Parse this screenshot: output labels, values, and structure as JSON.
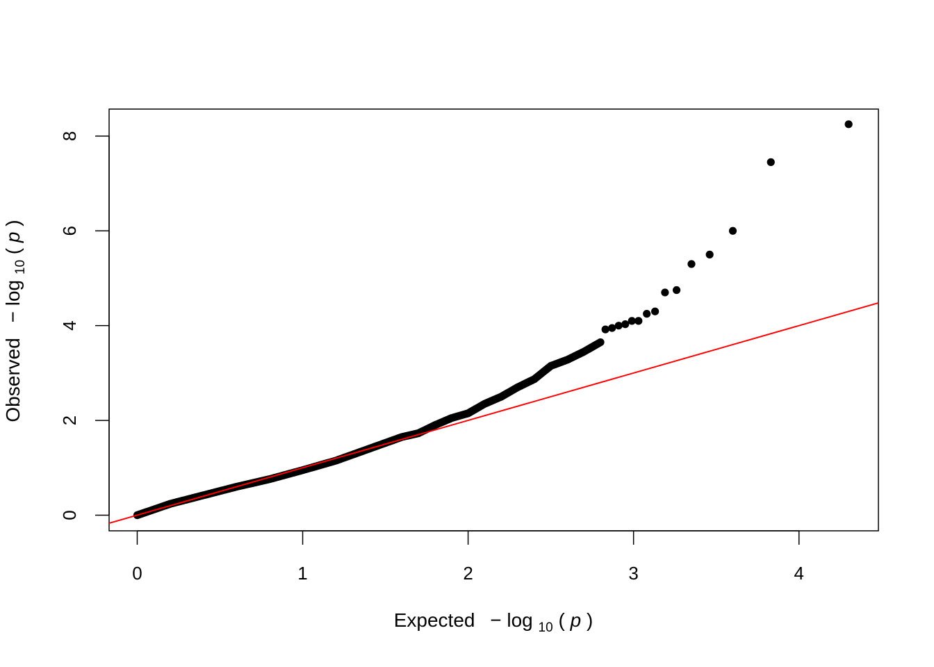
{
  "chart_data": {
    "type": "scatter",
    "title": "",
    "xlabel": {
      "prefix": "Expected",
      "minus": "−",
      "log": "log",
      "sub": "10",
      "open": "(",
      "var": "p",
      "close": ")"
    },
    "ylabel": {
      "prefix": "Observed",
      "minus": "−",
      "log": "log",
      "sub": "10",
      "open": "(",
      "var": "p",
      "close": ")"
    },
    "xlim": [
      -0.17,
      4.48
    ],
    "ylim": [
      -0.33,
      8.57
    ],
    "xticks": [
      0,
      1,
      2,
      3,
      4
    ],
    "yticks": [
      0,
      2,
      4,
      6,
      8
    ],
    "xtick_labels": [
      "0",
      "1",
      "2",
      "3",
      "4"
    ],
    "ytick_labels": [
      "0",
      "2",
      "4",
      "6",
      "8"
    ],
    "grid": false,
    "legend": "none",
    "series": [
      {
        "point_color": "#000000",
        "dense_curve": [
          [
            0,
            0
          ],
          [
            0.2,
            0.24
          ],
          [
            0.4,
            0.42
          ],
          [
            0.6,
            0.6
          ],
          [
            0.8,
            0.76
          ],
          [
            1.0,
            0.95
          ],
          [
            1.2,
            1.15
          ],
          [
            1.4,
            1.4
          ],
          [
            1.6,
            1.65
          ],
          [
            1.7,
            1.73
          ],
          [
            1.8,
            1.9
          ],
          [
            1.9,
            2.05
          ],
          [
            2.0,
            2.15
          ],
          [
            2.1,
            2.35
          ],
          [
            2.2,
            2.5
          ],
          [
            2.3,
            2.7
          ],
          [
            2.4,
            2.87
          ],
          [
            2.5,
            3.15
          ],
          [
            2.6,
            3.28
          ],
          [
            2.7,
            3.45
          ],
          [
            2.8,
            3.65
          ]
        ],
        "tail_points": [
          [
            2.83,
            3.92
          ],
          [
            2.87,
            3.95
          ],
          [
            2.91,
            4.0
          ],
          [
            2.95,
            4.03
          ],
          [
            2.99,
            4.1
          ],
          [
            3.03,
            4.1
          ],
          [
            3.08,
            4.25
          ],
          [
            3.13,
            4.3
          ],
          [
            3.19,
            4.7
          ],
          [
            3.26,
            4.75
          ],
          [
            3.35,
            5.3
          ],
          [
            3.46,
            5.5
          ],
          [
            3.6,
            6.0
          ],
          [
            3.83,
            7.45
          ],
          [
            4.3,
            8.25
          ]
        ]
      }
    ],
    "reference_line": {
      "slope": 1,
      "intercept": 0,
      "color": "#ff0000"
    }
  }
}
